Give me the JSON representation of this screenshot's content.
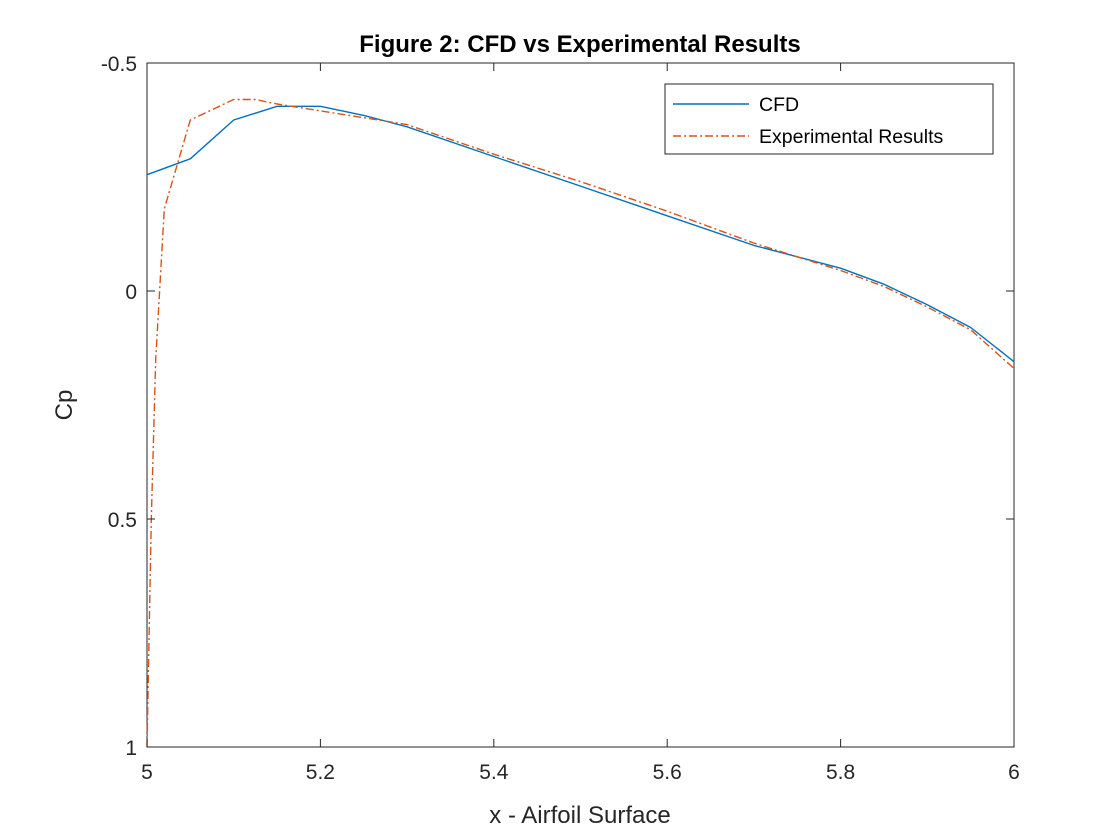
{
  "chart_data": {
    "type": "line",
    "title": "Figure 2: CFD vs Experimental Results",
    "xlabel": "x - Airfoil Surface",
    "ylabel": "Cp",
    "xlim": [
      5,
      6
    ],
    "ylim": [
      1,
      -0.5
    ],
    "y_reversed": true,
    "xticks": [
      5,
      5.2,
      5.4,
      5.6,
      5.8,
      6
    ],
    "xtick_labels": [
      "5",
      "5.2",
      "5.4",
      "5.6",
      "5.8",
      "6"
    ],
    "yticks": [
      -0.5,
      0,
      0.5,
      1
    ],
    "ytick_labels": [
      "-0.5",
      "0",
      "0.5",
      "1"
    ],
    "grid": false,
    "legend_position": "top-right",
    "series": [
      {
        "name": "CFD",
        "color": "#0072BD",
        "style": "solid",
        "x": [
          5.0,
          5.05,
          5.1,
          5.15,
          5.2,
          5.25,
          5.3,
          5.4,
          5.5,
          5.6,
          5.7,
          5.8,
          5.85,
          5.9,
          5.95,
          6.0
        ],
        "y": [
          -0.255,
          -0.29,
          -0.375,
          -0.405,
          -0.405,
          -0.385,
          -0.36,
          -0.295,
          -0.23,
          -0.165,
          -0.1,
          -0.05,
          -0.015,
          0.03,
          0.08,
          0.155
        ]
      },
      {
        "name": "Experimental Results",
        "color": "#D95319",
        "style": "dashdot",
        "x": [
          5.0,
          5.005,
          5.01,
          5.02,
          5.05,
          5.1,
          5.125,
          5.15,
          5.2,
          5.25,
          5.3,
          5.4,
          5.5,
          5.6,
          5.7,
          5.8,
          5.85,
          5.9,
          5.95,
          6.0
        ],
        "y": [
          1.0,
          0.5,
          0.15,
          -0.18,
          -0.375,
          -0.42,
          -0.42,
          -0.41,
          -0.395,
          -0.38,
          -0.365,
          -0.3,
          -0.24,
          -0.175,
          -0.105,
          -0.045,
          -0.01,
          0.035,
          0.085,
          0.17
        ]
      }
    ]
  }
}
